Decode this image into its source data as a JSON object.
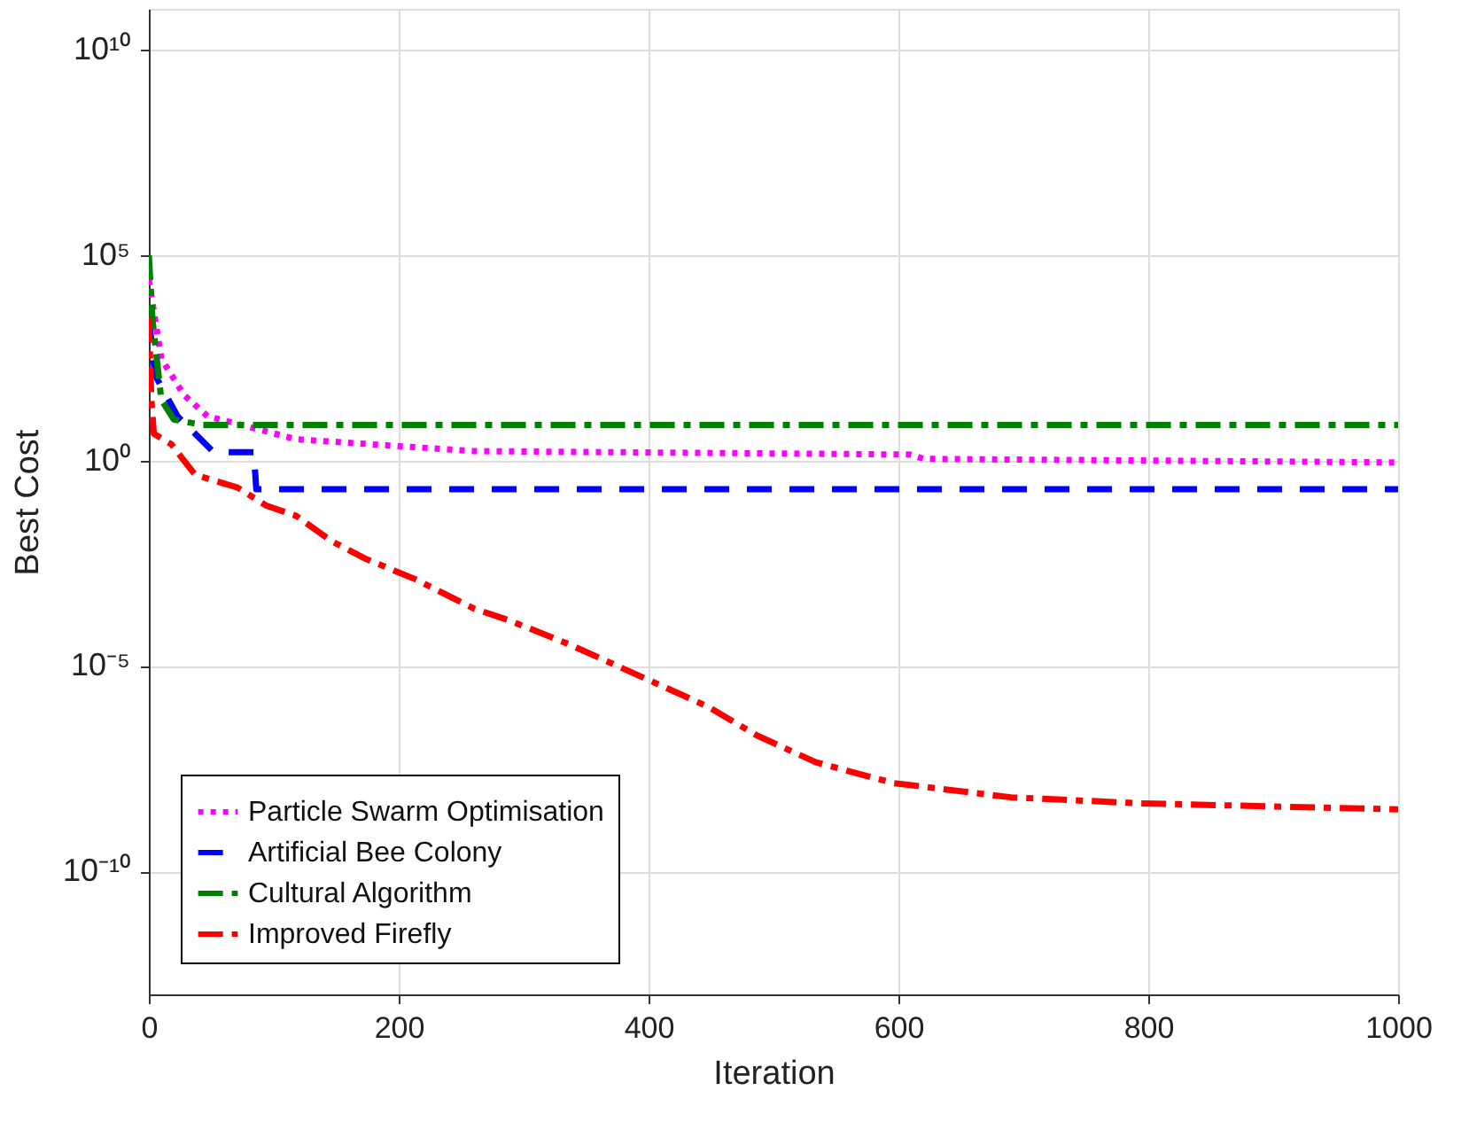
{
  "chart_data": {
    "type": "line",
    "xlabel": "Iteration",
    "ylabel": "Best Cost",
    "log": "y",
    "grid": true,
    "legend": "bottom left",
    "xlim": [
      0,
      1000
    ],
    "xticks": [
      0,
      200,
      400,
      600,
      800,
      1000
    ],
    "ylim": [
      1e-13,
      100000000000.0
    ],
    "yticks": [
      {
        "value": 1e-10,
        "label": "10⁻¹⁰"
      },
      {
        "value": 1e-05,
        "label": "10⁻⁵"
      },
      {
        "value": 1,
        "label": "10⁰"
      },
      {
        "value": 100000.0,
        "label": "10⁵"
      },
      {
        "value": 10000000000.0,
        "label": "10¹⁰"
      }
    ],
    "series": [
      {
        "name": "Particle Swarm Optimisation",
        "color": "#ff00ff",
        "line_style": "dotted",
        "x": [
          0,
          10,
          28,
          47,
          118,
          260,
          610,
          620,
          800,
          1000
        ],
        "values": [
          25000,
          300,
          40,
          12,
          3.3,
          1.7,
          1.4,
          1.1,
          1.0,
          0.9
        ]
      },
      {
        "name": "Artificial Bee Colony",
        "color": "#0000ff",
        "line_style": "dashed",
        "x": [
          0,
          5,
          23,
          51,
          56,
          84,
          86,
          1000
        ],
        "values": [
          3000,
          120,
          12,
          1.7,
          1.6,
          1.6,
          0.2,
          0.2
        ]
      },
      {
        "name": "Cultural Algorithm",
        "color": "#008000",
        "line_style": "dashdot",
        "x": [
          0,
          3,
          10,
          20,
          42,
          1000
        ],
        "values": [
          100000,
          2500,
          30,
          10,
          7.4,
          7.4
        ]
      },
      {
        "name": "Improved Firefly",
        "color": "#ff0000",
        "line_style": "dashdot",
        "x": [
          0,
          2,
          4,
          18,
          37,
          71,
          94,
          118,
          146,
          174,
          213,
          260,
          288,
          335,
          397,
          448,
          487,
          534,
          596,
          690,
          794,
          1000
        ],
        "values": [
          3000,
          30,
          4.5,
          2.5,
          0.45,
          0.22,
          0.08,
          0.045,
          0.011,
          0.004,
          0.0013,
          0.00025,
          0.00013,
          3.5e-05,
          5e-06,
          1e-06,
          2e-07,
          4.5e-08,
          1.4e-08,
          6.3e-09,
          4.5e-09,
          3.2e-09
        ]
      }
    ]
  }
}
